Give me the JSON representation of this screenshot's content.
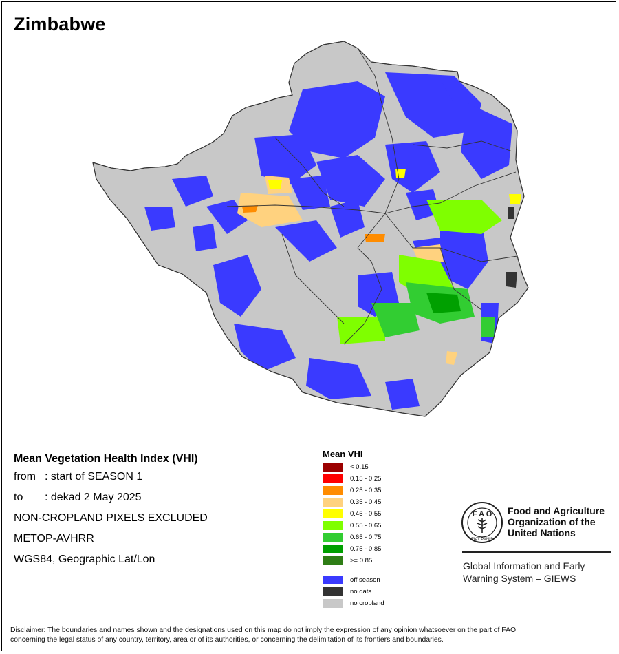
{
  "title": "Zimbabwe",
  "info": {
    "heading": "Mean Vegetation Health Index (VHI)",
    "from_label": "from",
    "from_value": ": start of SEASON 1",
    "to_label": "to",
    "to_value": ": dekad 2 May 2025",
    "line3": "NON-CROPLAND PIXELS EXCLUDED",
    "line4": "METOP-AVHRR",
    "line5": "WGS84, Geographic Lat/Lon"
  },
  "legend": {
    "title": "Mean VHI",
    "classes": [
      {
        "label": "< 0.15",
        "color": "#9b0000"
      },
      {
        "label": "0.15 - 0.25",
        "color": "#ff0000"
      },
      {
        "label": "0.25 - 0.35",
        "color": "#ff8c00"
      },
      {
        "label": "0.35 - 0.45",
        "color": "#ffd27f"
      },
      {
        "label": "0.45 - 0.55",
        "color": "#ffff00"
      },
      {
        "label": "0.55 - 0.65",
        "color": "#7fff00"
      },
      {
        "label": "0.65 - 0.75",
        "color": "#32cd32"
      },
      {
        "label": "0.75 - 0.85",
        "color": "#00a000"
      },
      {
        "label": ">= 0.85",
        "color": "#2e7d15"
      }
    ],
    "extra": [
      {
        "label": "off season",
        "color": "#3a3aff"
      },
      {
        "label": "no data",
        "color": "#333333"
      },
      {
        "label": "no cropland",
        "color": "#c8c8c8"
      }
    ]
  },
  "fao": {
    "name_line1": "Food and Agriculture",
    "name_line2": "Organization of the",
    "name_line3": "United Nations",
    "logo_text_fao": "FAO",
    "logo_text_fiat": "FIAT PANIS",
    "giews_line1": "Global Information and Early",
    "giews_line2": "Warning System – GIEWS"
  },
  "disclaimer": {
    "line1": "Disclaimer: The boundaries and names shown and the designations used on this map do not imply the expression of any opinion whatsoever on the part of FAO",
    "line2": "concerning the legal status of any country, territory, area or of its authorities, or concerning the delimitation of its frontiers and boundaries."
  }
}
